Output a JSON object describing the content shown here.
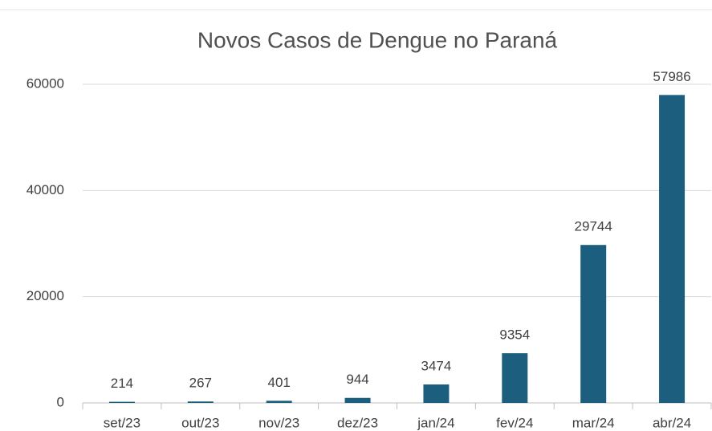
{
  "chart_data": {
    "type": "bar",
    "title": "Novos Casos de Dengue no Paraná",
    "categories": [
      "set/23",
      "out/23",
      "nov/23",
      "dez/23",
      "jan/24",
      "fev/24",
      "mar/24",
      "abr/24"
    ],
    "values": [
      214,
      267,
      401,
      944,
      3474,
      9354,
      29744,
      57986
    ],
    "color": "#1b5e7e",
    "ylim": [
      0,
      60000
    ],
    "yticks": [
      0,
      20000,
      40000,
      60000
    ],
    "grid": true
  }
}
